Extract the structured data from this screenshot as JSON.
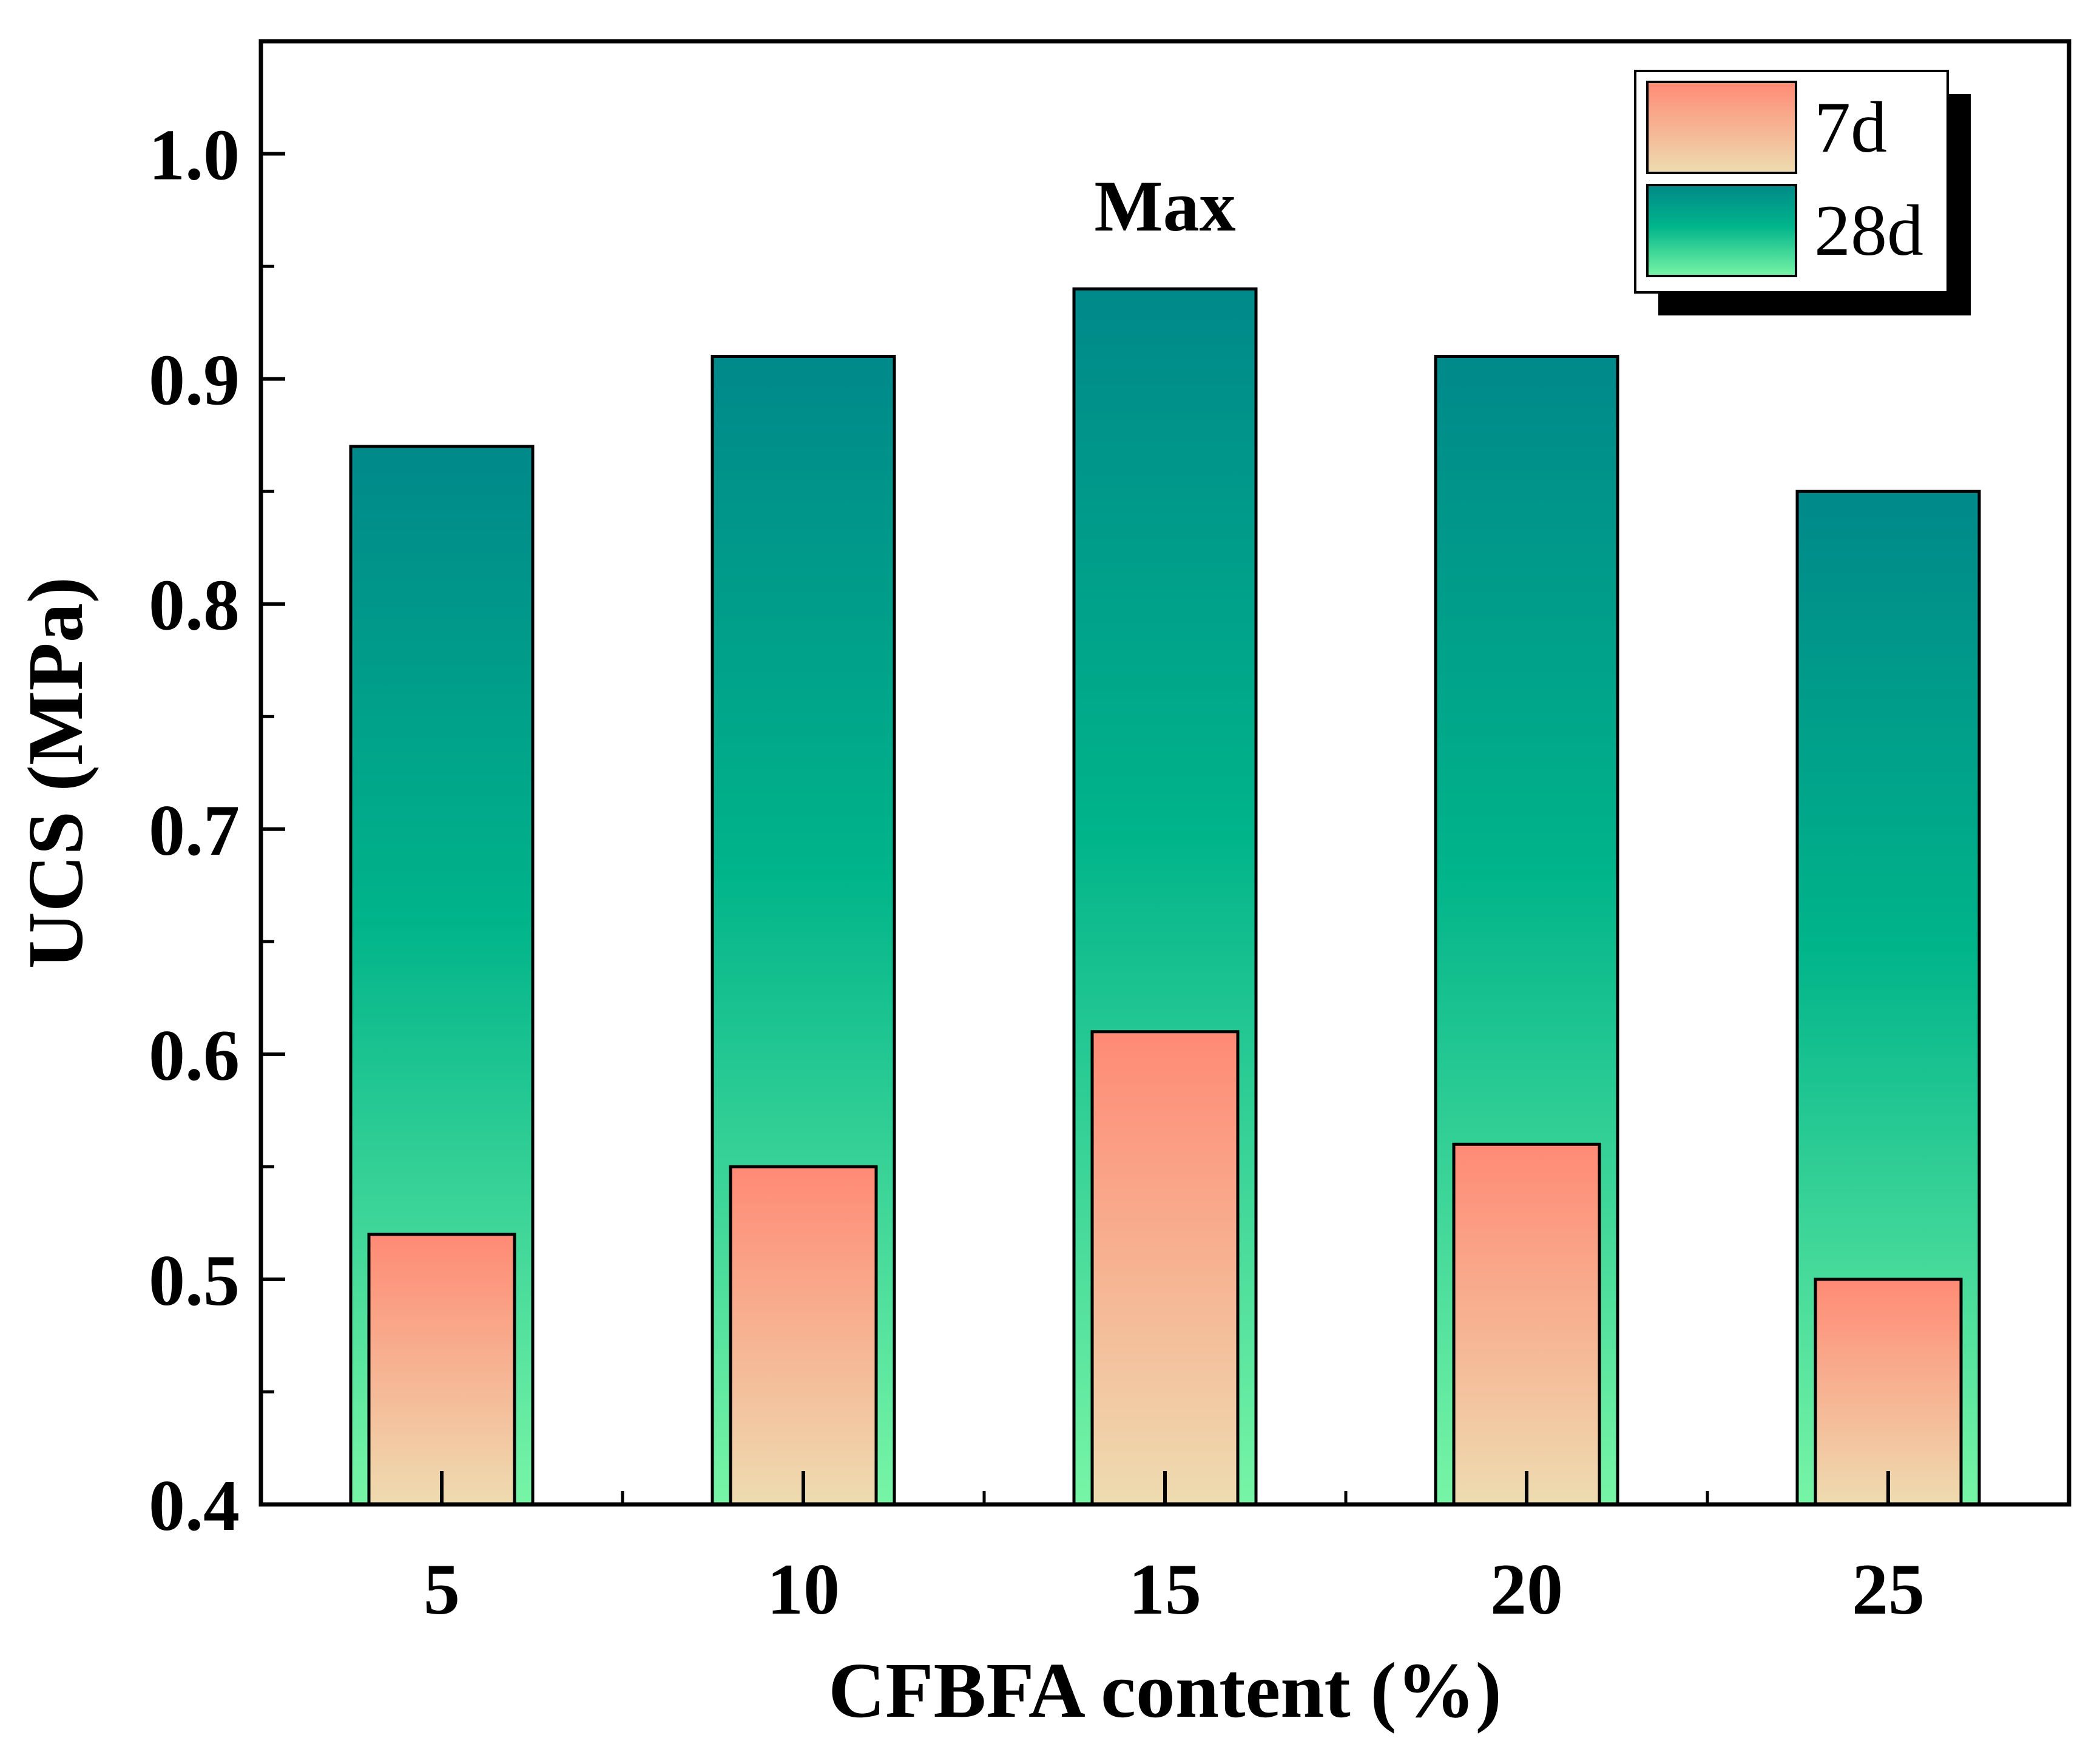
{
  "chart_data": {
    "type": "bar",
    "title": "",
    "xlabel": "CFBFA content (%)",
    "ylabel": "UCS (MPa)",
    "categories": [
      "5",
      "10",
      "15",
      "20",
      "25"
    ],
    "ylim": [
      0.4,
      1.05
    ],
    "yticks": [
      "0.4",
      "0.5",
      "0.6",
      "0.7",
      "0.8",
      "0.9",
      "1.0"
    ],
    "series": [
      {
        "name": "7d",
        "values": [
          0.52,
          0.55,
          0.61,
          0.56,
          0.5
        ]
      },
      {
        "name": "28d",
        "values": [
          0.87,
          0.91,
          0.94,
          0.91,
          0.85
        ]
      }
    ],
    "annotation": {
      "text": "Max",
      "category": "15",
      "color": "#ff3b3b"
    },
    "legend_position": "top-right",
    "colors": {
      "s7d_top": "#ff8a75",
      "s7d_bottom": "#eedcb0",
      "s28d_top": "#00898a",
      "s28d_mid": "#00b48a",
      "s28d_bottom": "#78f5a6"
    }
  }
}
